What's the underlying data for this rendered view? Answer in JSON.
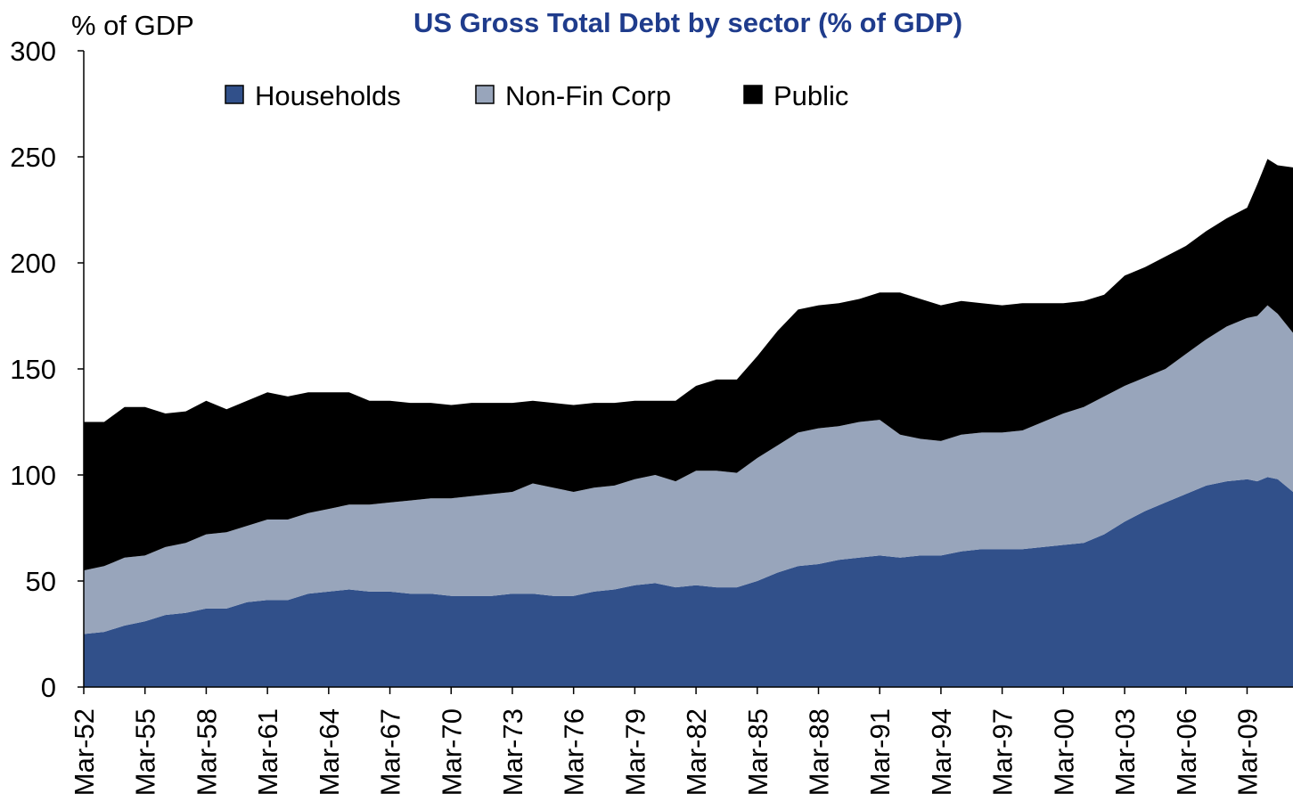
{
  "chart_data": {
    "type": "area",
    "stacked": true,
    "title": "US Gross Total Debt by sector (% of GDP)",
    "ylabel": "% of GDP",
    "xlabel": "",
    "ylim": [
      0,
      300
    ],
    "yticks": [
      0,
      50,
      100,
      150,
      200,
      250,
      300
    ],
    "x_tick_labels": [
      "Mar-52",
      "Mar-55",
      "Mar-58",
      "Mar-61",
      "Mar-64",
      "Mar-67",
      "Mar-70",
      "Mar-73",
      "Mar-76",
      "Mar-79",
      "Mar-82",
      "Mar-85",
      "Mar-88",
      "Mar-91",
      "Mar-94",
      "Mar-97",
      "Mar-00",
      "Mar-03",
      "Mar-06",
      "Mar-09"
    ],
    "x_start_year": 1952,
    "x_end_year": 2011.25,
    "grid": false,
    "legend_position": "top",
    "x": [
      1952,
      1953,
      1954,
      1955,
      1956,
      1957,
      1958,
      1959,
      1960,
      1961,
      1962,
      1963,
      1964,
      1965,
      1966,
      1967,
      1968,
      1969,
      1970,
      1971,
      1972,
      1973,
      1974,
      1975,
      1976,
      1977,
      1978,
      1979,
      1980,
      1981,
      1982,
      1983,
      1984,
      1985,
      1986,
      1987,
      1988,
      1989,
      1990,
      1991,
      1992,
      1993,
      1994,
      1995,
      1996,
      1997,
      1998,
      1999,
      2000,
      2001,
      2002,
      2003,
      2004,
      2005,
      2006,
      2007,
      2008,
      2009,
      2009.5,
      2010,
      2010.5,
      2011.25
    ],
    "series": [
      {
        "name": "Households",
        "color": "#31508a",
        "values": [
          25,
          26,
          29,
          31,
          34,
          35,
          37,
          37,
          40,
          41,
          41,
          44,
          45,
          46,
          45,
          45,
          44,
          44,
          43,
          43,
          43,
          44,
          44,
          43,
          43,
          45,
          46,
          48,
          49,
          47,
          48,
          47,
          47,
          50,
          54,
          57,
          58,
          60,
          61,
          62,
          61,
          62,
          62,
          64,
          65,
          65,
          65,
          66,
          67,
          68,
          72,
          78,
          83,
          87,
          91,
          95,
          97,
          98,
          97,
          99,
          98,
          92
        ]
      },
      {
        "name": "Non-Fin Corp",
        "color": "#98a5bb",
        "values": [
          30,
          31,
          32,
          31,
          32,
          33,
          35,
          36,
          36,
          38,
          38,
          38,
          39,
          40,
          41,
          42,
          44,
          45,
          46,
          47,
          48,
          48,
          52,
          51,
          49,
          49,
          49,
          50,
          51,
          50,
          54,
          55,
          54,
          58,
          60,
          63,
          64,
          63,
          64,
          64,
          58,
          55,
          54,
          55,
          55,
          55,
          56,
          59,
          62,
          64,
          65,
          64,
          63,
          63,
          66,
          69,
          73,
          76,
          78,
          81,
          78,
          75
        ]
      },
      {
        "name": "Public",
        "color": "#000000",
        "values": [
          70,
          68,
          71,
          70,
          63,
          62,
          63,
          58,
          59,
          60,
          58,
          57,
          55,
          53,
          49,
          48,
          46,
          45,
          44,
          44,
          43,
          42,
          39,
          40,
          41,
          40,
          39,
          37,
          35,
          38,
          40,
          43,
          44,
          48,
          54,
          58,
          58,
          58,
          58,
          60,
          67,
          66,
          64,
          63,
          61,
          60,
          60,
          56,
          52,
          50,
          48,
          52,
          52,
          53,
          51,
          51,
          51,
          52,
          62,
          69,
          70,
          78
        ]
      }
    ]
  }
}
